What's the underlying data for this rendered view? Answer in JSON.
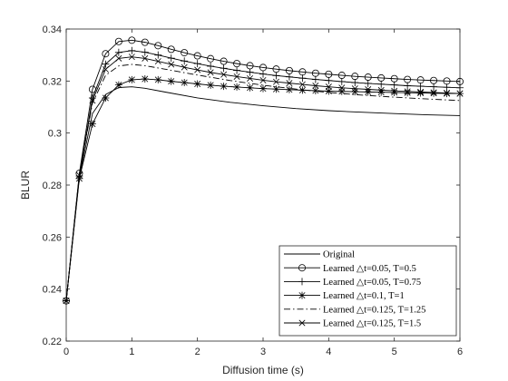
{
  "chart_data": {
    "type": "line",
    "title": "",
    "xlabel": "Diffusion time (s)",
    "ylabel": "BLUR",
    "xlim": [
      0,
      6
    ],
    "ylim": [
      0.22,
      0.34
    ],
    "xticks": [
      0,
      1,
      2,
      3,
      4,
      5,
      6
    ],
    "xtick_labels": [
      "0",
      "1",
      "2",
      "3",
      "4",
      "5",
      "6"
    ],
    "yticks": [
      0.22,
      0.24,
      0.26,
      0.28,
      0.3,
      0.32,
      0.34
    ],
    "ytick_labels": [
      "0.22",
      "0.24",
      "0.26",
      "0.28",
      "0.3",
      "0.32",
      "0.34"
    ],
    "grid": false,
    "legend_position": "bottom-right",
    "series": [
      {
        "name": "Original",
        "legend_label": "Original",
        "line_style": "solid",
        "marker": "none",
        "x": [
          0,
          0.2,
          0.4,
          0.6,
          0.8,
          1.0,
          1.2,
          1.5,
          2.0,
          2.5,
          3.0,
          3.5,
          4.0,
          4.5,
          5.0,
          5.5,
          6.0
        ],
        "y": [
          0.2355,
          0.283,
          0.3075,
          0.3148,
          0.3175,
          0.3178,
          0.3172,
          0.3158,
          0.3135,
          0.3118,
          0.3105,
          0.3094,
          0.3086,
          0.308,
          0.3075,
          0.307,
          0.3067
        ]
      },
      {
        "name": "Learned dt=0.05, T=0.5",
        "legend_label": "Learned △t=0.05, T=0.5",
        "line_style": "solid",
        "marker": "circle",
        "x": [
          0,
          0.2,
          0.4,
          0.6,
          0.8,
          1.0,
          1.2,
          1.4,
          1.6,
          1.8,
          2.0,
          2.2,
          2.4,
          2.6,
          2.8,
          3.0,
          3.2,
          3.4,
          3.6,
          3.8,
          4.0,
          4.2,
          4.4,
          4.6,
          4.8,
          5.0,
          5.2,
          5.4,
          5.6,
          5.8,
          6.0
        ],
        "y": [
          0.2355,
          0.2845,
          0.3168,
          0.3305,
          0.3352,
          0.3357,
          0.3349,
          0.3336,
          0.3322,
          0.3309,
          0.3297,
          0.3286,
          0.3276,
          0.3267,
          0.3259,
          0.3252,
          0.3246,
          0.324,
          0.3235,
          0.323,
          0.3226,
          0.3222,
          0.3218,
          0.3215,
          0.3212,
          0.3209,
          0.3206,
          0.3204,
          0.3202,
          0.32,
          0.3198
        ]
      },
      {
        "name": "Learned dt=0.05, T=0.75",
        "legend_label": "Learned △t=0.05, T=0.75",
        "line_style": "solid",
        "marker": "plus",
        "x": [
          0,
          0.2,
          0.4,
          0.6,
          0.8,
          1.0,
          1.2,
          1.4,
          1.6,
          1.8,
          2.0,
          2.2,
          2.4,
          2.6,
          2.8,
          3.0,
          3.2,
          3.4,
          3.6,
          3.8,
          4.0,
          4.2,
          4.4,
          4.6,
          4.8,
          5.0,
          5.2,
          5.4,
          5.6,
          5.8,
          6.0
        ],
        "y": [
          0.2355,
          0.2835,
          0.3135,
          0.3265,
          0.331,
          0.3317,
          0.3311,
          0.33,
          0.3288,
          0.3277,
          0.3267,
          0.3257,
          0.3249,
          0.3241,
          0.3234,
          0.3227,
          0.3221,
          0.3216,
          0.3211,
          0.3206,
          0.3202,
          0.3198,
          0.3194,
          0.3191,
          0.3188,
          0.3185,
          0.3182,
          0.318,
          0.3178,
          0.3176,
          0.3174
        ]
      },
      {
        "name": "Learned dt=0.1, T=1",
        "legend_label": "Learned △t=0.1, T=1",
        "line_style": "solid",
        "marker": "star",
        "x": [
          0,
          0.2,
          0.4,
          0.6,
          0.8,
          1.0,
          1.2,
          1.4,
          1.6,
          1.8,
          2.0,
          2.2,
          2.4,
          2.6,
          2.8,
          3.0,
          3.2,
          3.4,
          3.6,
          3.8,
          4.0,
          4.2,
          4.4,
          4.6,
          4.8,
          5.0,
          5.2,
          5.4,
          5.6,
          5.8,
          6.0
        ],
        "y": [
          0.2355,
          0.2825,
          0.3035,
          0.3135,
          0.3185,
          0.3205,
          0.3208,
          0.3205,
          0.3199,
          0.3194,
          0.3189,
          0.3184,
          0.318,
          0.3177,
          0.3174,
          0.3171,
          0.3169,
          0.3167,
          0.3165,
          0.3163,
          0.3161,
          0.316,
          0.3159,
          0.3158,
          0.3157,
          0.3156,
          0.3155,
          0.3154,
          0.3153,
          0.3152,
          0.3152
        ]
      },
      {
        "name": "Learned dt=0.125, T=1.25",
        "legend_label": "Learned △t=0.125, T=1.25",
        "line_style": "dashdot",
        "marker": "none",
        "x": [
          0,
          0.2,
          0.4,
          0.6,
          0.8,
          1.0,
          1.2,
          1.5,
          2.0,
          2.5,
          3.0,
          3.5,
          4.0,
          4.5,
          5.0,
          5.5,
          6.0
        ],
        "y": [
          0.2355,
          0.284,
          0.3115,
          0.3222,
          0.3258,
          0.3264,
          0.3259,
          0.3246,
          0.3223,
          0.3202,
          0.3184,
          0.3169,
          0.3156,
          0.3146,
          0.3138,
          0.3131,
          0.3125
        ]
      },
      {
        "name": "Learned dt=0.125, T=1.5",
        "legend_label": "Learned △t=0.125, T=1.5",
        "line_style": "solid",
        "marker": "x",
        "x": [
          0,
          0.2,
          0.4,
          0.6,
          0.8,
          1.0,
          1.2,
          1.4,
          1.6,
          1.8,
          2.0,
          2.2,
          2.4,
          2.6,
          2.8,
          3.0,
          3.2,
          3.4,
          3.6,
          3.8,
          4.0,
          4.2,
          4.4,
          4.6,
          4.8,
          5.0,
          5.2,
          5.4,
          5.6,
          5.8,
          6.0
        ],
        "y": [
          0.2355,
          0.2838,
          0.3125,
          0.3245,
          0.3287,
          0.3293,
          0.3287,
          0.3276,
          0.3264,
          0.3253,
          0.3243,
          0.3233,
          0.3225,
          0.3217,
          0.321,
          0.3203,
          0.3197,
          0.3192,
          0.3187,
          0.3182,
          0.3178,
          0.3174,
          0.3171,
          0.3168,
          0.3165,
          0.3162,
          0.316,
          0.3158,
          0.3156,
          0.3154,
          0.3152
        ]
      }
    ]
  }
}
